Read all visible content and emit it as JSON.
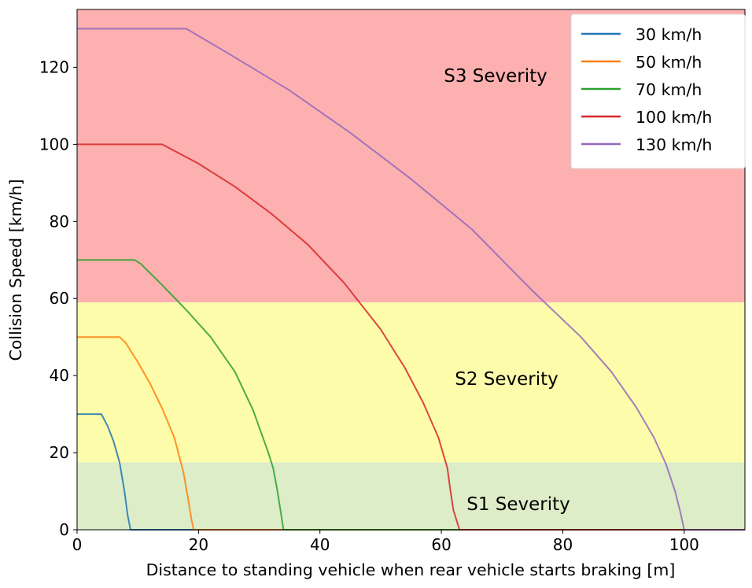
{
  "chart_data": {
    "type": "line",
    "xlabel": "Distance to standing vehicle when rear vehicle starts braking [m]",
    "ylabel": "Collision Speed [km/h]",
    "xlim": [
      0,
      110
    ],
    "ylim": [
      0,
      135
    ],
    "xticks": [
      "0",
      "20",
      "40",
      "60",
      "80",
      "100"
    ],
    "yticks": [
      "0",
      "20",
      "40",
      "60",
      "80",
      "100",
      "120"
    ],
    "grid": false,
    "legend_position": "top-right",
    "bands": [
      {
        "label": "S1 Severity",
        "y_range": [
          0,
          17.5
        ],
        "color": "#dcedc8"
      },
      {
        "label": "S2 Severity",
        "y_range": [
          17.5,
          59
        ],
        "color": "#fdfcaa"
      },
      {
        "label": "S3 Severity",
        "y_range": [
          59,
          135
        ],
        "color": "#fdb0b0"
      }
    ],
    "series": [
      {
        "name": "30 km/h",
        "color": "#1f77b4",
        "x": [
          0,
          4,
          5,
          6,
          7,
          7.8,
          8.3,
          8.8,
          110
        ],
        "y": [
          30,
          30,
          27,
          23,
          17.5,
          10,
          4,
          0,
          0
        ]
      },
      {
        "name": "50 km/h",
        "color": "#ff7f0e",
        "x": [
          0,
          7,
          8,
          10,
          12,
          14,
          16,
          17.5,
          18.3,
          18.8,
          19.2,
          110
        ],
        "y": [
          50,
          50,
          48.5,
          43.5,
          38,
          31.5,
          24,
          15,
          8,
          3,
          0,
          0
        ]
      },
      {
        "name": "70 km/h",
        "color": "#2ca02c",
        "x": [
          0,
          9.5,
          10.5,
          14,
          18,
          22,
          26,
          29,
          31.5,
          32.3,
          33,
          33.5,
          34,
          110
        ],
        "y": [
          70,
          70,
          69,
          63.5,
          57,
          50,
          41,
          31,
          20,
          16,
          10,
          5,
          0,
          0
        ]
      },
      {
        "name": "100 km/h",
        "color": "#d62728",
        "x": [
          0,
          14,
          20,
          26,
          32,
          38,
          44,
          50,
          54,
          57,
          59.5,
          61,
          61.5,
          62,
          63,
          110
        ],
        "y": [
          100,
          100,
          95,
          89,
          82,
          74,
          64,
          52,
          42,
          33,
          24,
          16,
          10,
          5,
          0,
          0
        ]
      },
      {
        "name": "130 km/h",
        "color": "#9467bd",
        "x": [
          0,
          18,
          25,
          35,
          45,
          55,
          65,
          75,
          83,
          88,
          92,
          95,
          97,
          98.5,
          99.3,
          100,
          110
        ],
        "y": [
          130,
          130,
          123.5,
          114,
          103,
          91,
          78,
          62,
          50,
          41,
          32,
          24,
          17,
          10,
          5,
          0,
          0
        ]
      }
    ]
  }
}
